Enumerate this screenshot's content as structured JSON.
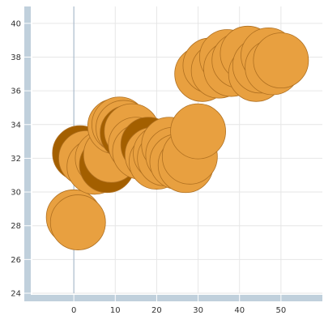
{
  "chart_data": {
    "type": "scatter",
    "title": "",
    "xlabel": "",
    "ylabel": "",
    "xlim": [
      -10,
      60
    ],
    "ylim": [
      24,
      41
    ],
    "x_ticks": [
      0,
      10,
      20,
      30,
      40,
      50
    ],
    "y_ticks": [
      24,
      26,
      28,
      30,
      32,
      34,
      36,
      38,
      40
    ],
    "grid": true,
    "legend": "none",
    "bubble_size_rel": 1,
    "colors": {
      "bubble_fill": "#E8A040",
      "bubble_stroke": "#B07020",
      "bubble_dark_fill": "#A35F00",
      "axis_band": "#C0D0DC",
      "grid": "#E6E6E6",
      "zero_line": "#9FB3C8"
    },
    "series": [
      {
        "points": [
          {
            "x": 0,
            "y": 28.5,
            "variant": "light"
          },
          {
            "x": 1,
            "y": 28.2,
            "variant": "light"
          },
          {
            "x": 1.5,
            "y": 32.3,
            "variant": "dark"
          },
          {
            "x": 3,
            "y": 32.0,
            "variant": "light"
          },
          {
            "x": 5,
            "y": 31.5,
            "variant": "light"
          },
          {
            "x": 7,
            "y": 32.0,
            "variant": "light"
          },
          {
            "x": 8,
            "y": 31.6,
            "variant": "dark"
          },
          {
            "x": 9,
            "y": 32.2,
            "variant": "light"
          },
          {
            "x": 10,
            "y": 33.9,
            "variant": "light"
          },
          {
            "x": 11,
            "y": 34.0,
            "variant": "light"
          },
          {
            "x": 12,
            "y": 33.8,
            "variant": "light"
          },
          {
            "x": 13,
            "y": 33.5,
            "variant": "dark"
          },
          {
            "x": 14,
            "y": 33.6,
            "variant": "light"
          },
          {
            "x": 15,
            "y": 32.8,
            "variant": "light"
          },
          {
            "x": 16,
            "y": 32.4,
            "variant": "light"
          },
          {
            "x": 18,
            "y": 32.8,
            "variant": "dark"
          },
          {
            "x": 19,
            "y": 32.2,
            "variant": "light"
          },
          {
            "x": 20,
            "y": 31.8,
            "variant": "light"
          },
          {
            "x": 21,
            "y": 32.3,
            "variant": "light"
          },
          {
            "x": 22,
            "y": 32.0,
            "variant": "light"
          },
          {
            "x": 23,
            "y": 32.8,
            "variant": "light"
          },
          {
            "x": 24,
            "y": 32.2,
            "variant": "light"
          },
          {
            "x": 25,
            "y": 31.8,
            "variant": "light"
          },
          {
            "x": 27,
            "y": 31.6,
            "variant": "light"
          },
          {
            "x": 28,
            "y": 32.1,
            "variant": "light"
          },
          {
            "x": 30,
            "y": 33.6,
            "variant": "light"
          },
          {
            "x": 31,
            "y": 37.0,
            "variant": "light"
          },
          {
            "x": 33,
            "y": 37.5,
            "variant": "light"
          },
          {
            "x": 35,
            "y": 37.2,
            "variant": "light"
          },
          {
            "x": 37,
            "y": 38.0,
            "variant": "light"
          },
          {
            "x": 38,
            "y": 37.3,
            "variant": "light"
          },
          {
            "x": 40,
            "y": 37.8,
            "variant": "light"
          },
          {
            "x": 42,
            "y": 38.2,
            "variant": "light"
          },
          {
            "x": 44,
            "y": 37.0,
            "variant": "light"
          },
          {
            "x": 45,
            "y": 37.5,
            "variant": "light"
          },
          {
            "x": 47,
            "y": 38.1,
            "variant": "light"
          },
          {
            "x": 48,
            "y": 37.4,
            "variant": "light"
          },
          {
            "x": 50,
            "y": 37.8,
            "variant": "light"
          }
        ]
      }
    ]
  }
}
